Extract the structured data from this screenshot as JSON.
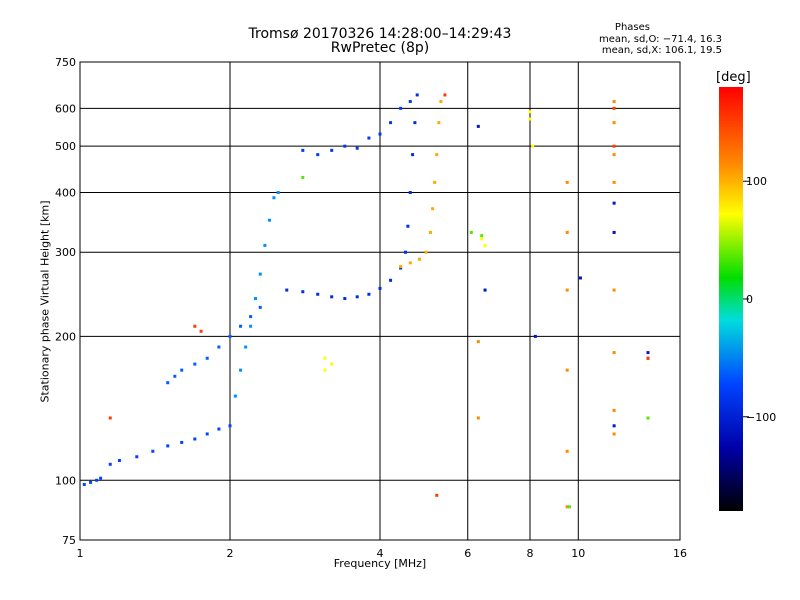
{
  "chart_data": {
    "type": "scatter",
    "title": "Tromsø 20170326 14:28:00–14:29:43",
    "subtitle": "RwPretec (8p)",
    "xlabel": "Frequency [MHz]",
    "ylabel": "Stationary phase Virtual Height [km]",
    "x_scale": "log",
    "y_scale": "log",
    "xlim": [
      1,
      16
    ],
    "ylim": [
      75,
      750
    ],
    "x_ticks": [
      1,
      2,
      4,
      6,
      8,
      10,
      16
    ],
    "y_ticks": [
      75,
      100,
      200,
      300,
      400,
      500,
      600,
      750
    ],
    "grid": true,
    "stats": {
      "heading": "Phases",
      "line1": "mean, sd,O: −71.4, 16.3",
      "line2": "mean, sd,X: 106.1, 19.5"
    },
    "colorbar": {
      "label": "[deg]",
      "ticks": [
        "100",
        "0",
        "−100"
      ]
    },
    "traces": [
      {
        "phase": -100,
        "points": [
          [
            1.02,
            98
          ],
          [
            1.05,
            99
          ],
          [
            1.08,
            100
          ],
          [
            1.1,
            101
          ],
          [
            1.15,
            108
          ],
          [
            1.2,
            110
          ],
          [
            1.3,
            112
          ],
          [
            1.4,
            115
          ],
          [
            1.5,
            118
          ],
          [
            1.6,
            120
          ],
          [
            1.7,
            122
          ],
          [
            1.8,
            125
          ],
          [
            1.9,
            128
          ],
          [
            2.0,
            130
          ]
        ]
      },
      {
        "phase": -90,
        "points": [
          [
            1.5,
            160
          ],
          [
            1.55,
            165
          ],
          [
            1.6,
            170
          ],
          [
            1.7,
            175
          ],
          [
            1.8,
            180
          ],
          [
            1.9,
            190
          ],
          [
            2.0,
            200
          ],
          [
            2.1,
            210
          ],
          [
            2.2,
            220
          ],
          [
            2.3,
            230
          ]
        ]
      },
      {
        "phase": -70,
        "points": [
          [
            2.05,
            150
          ],
          [
            2.1,
            170
          ],
          [
            2.15,
            190
          ],
          [
            2.2,
            210
          ],
          [
            2.25,
            240
          ],
          [
            2.3,
            270
          ],
          [
            2.35,
            310
          ],
          [
            2.4,
            350
          ],
          [
            2.45,
            390
          ],
          [
            2.5,
            400
          ]
        ]
      },
      {
        "phase": -110,
        "points": [
          [
            2.6,
            250
          ],
          [
            2.8,
            248
          ],
          [
            3.0,
            245
          ],
          [
            3.2,
            242
          ],
          [
            3.4,
            240
          ],
          [
            3.6,
            242
          ],
          [
            3.8,
            245
          ],
          [
            4.0,
            252
          ],
          [
            4.2,
            262
          ],
          [
            4.4,
            278
          ],
          [
            4.5,
            300
          ],
          [
            4.55,
            340
          ],
          [
            4.6,
            400
          ],
          [
            4.65,
            480
          ],
          [
            4.7,
            560
          ],
          [
            4.75,
            640
          ]
        ]
      },
      {
        "phase": -105,
        "points": [
          [
            2.8,
            490
          ],
          [
            3.0,
            480
          ],
          [
            3.2,
            490
          ],
          [
            3.4,
            500
          ],
          [
            3.6,
            495
          ],
          [
            3.8,
            520
          ],
          [
            4.0,
            530
          ],
          [
            4.2,
            560
          ],
          [
            4.4,
            600
          ],
          [
            4.6,
            620
          ]
        ]
      },
      {
        "phase": 110,
        "points": [
          [
            4.4,
            280
          ],
          [
            4.6,
            285
          ],
          [
            4.8,
            290
          ],
          [
            4.95,
            300
          ],
          [
            5.05,
            330
          ],
          [
            5.1,
            370
          ],
          [
            5.15,
            420
          ],
          [
            5.2,
            480
          ],
          [
            5.25,
            560
          ],
          [
            5.3,
            620
          ]
        ]
      },
      {
        "phase": 130,
        "points": [
          [
            6.3,
            195
          ],
          [
            6.3,
            135
          ],
          [
            9.5,
            420
          ],
          [
            9.5,
            330
          ],
          [
            9.5,
            250
          ],
          [
            9.5,
            170
          ],
          [
            9.5,
            115
          ],
          [
            9.5,
            88
          ],
          [
            11.8,
            620
          ],
          [
            11.8,
            560
          ],
          [
            11.8,
            480
          ],
          [
            11.8,
            420
          ],
          [
            11.8,
            330
          ],
          [
            11.8,
            250
          ],
          [
            11.8,
            185
          ],
          [
            11.8,
            140
          ],
          [
            11.8,
            125
          ]
        ]
      },
      {
        "phase": -120,
        "points": [
          [
            6.3,
            550
          ],
          [
            6.5,
            250
          ],
          [
            8.2,
            200
          ],
          [
            10.1,
            265
          ],
          [
            11.8,
            380
          ],
          [
            11.8,
            330
          ],
          [
            11.8,
            130
          ],
          [
            13.8,
            185
          ],
          [
            13.8,
            180
          ]
        ]
      },
      {
        "phase": 60,
        "points": [
          [
            6.4,
            320
          ],
          [
            6.5,
            310
          ],
          [
            8.0,
            590
          ],
          [
            8.0,
            570
          ],
          [
            8.1,
            500
          ],
          [
            3.1,
            180
          ],
          [
            3.2,
            175
          ],
          [
            3.1,
            170
          ]
        ]
      },
      {
        "phase": 160,
        "points": [
          [
            1.15,
            135
          ],
          [
            1.7,
            210
          ],
          [
            1.75,
            205
          ],
          [
            5.2,
            93
          ],
          [
            5.4,
            640
          ],
          [
            11.8,
            600
          ],
          [
            11.8,
            500
          ],
          [
            13.8,
            180
          ]
        ]
      },
      {
        "phase": 20,
        "points": [
          [
            6.1,
            330
          ],
          [
            6.4,
            325
          ],
          [
            9.6,
            88
          ],
          [
            13.8,
            135
          ],
          [
            2.8,
            430
          ]
        ]
      }
    ]
  }
}
